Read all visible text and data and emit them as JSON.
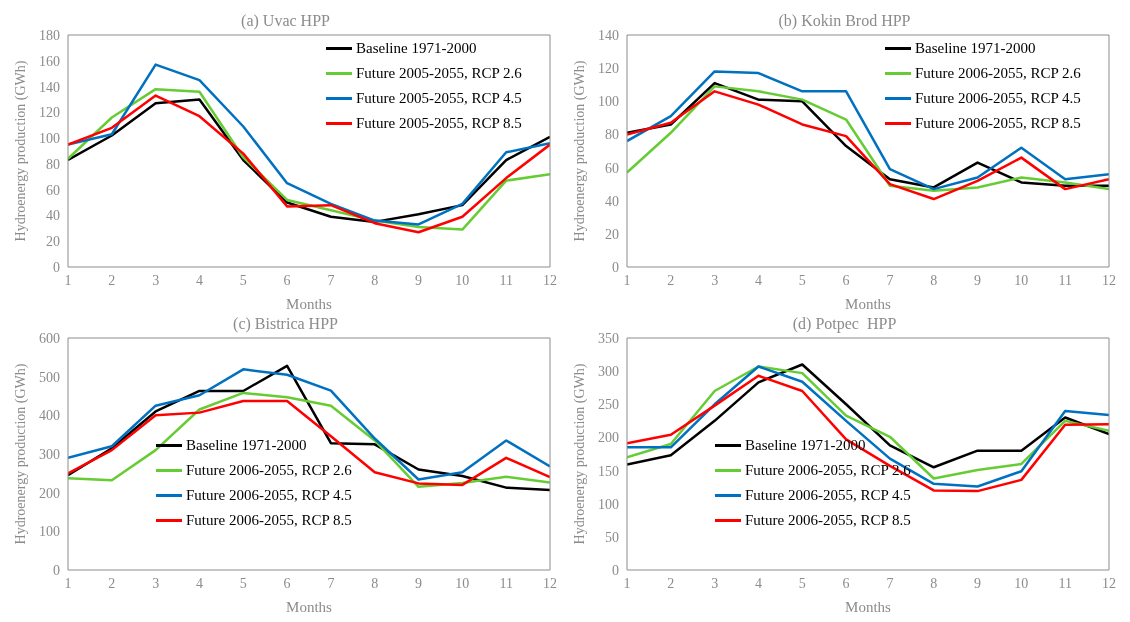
{
  "chart_data": [
    {
      "type": "line",
      "title": "(a) Uvac HPP",
      "xlabel": "Months",
      "ylabel": "Hydroenergy production (GWh)",
      "x": [
        1,
        2,
        3,
        4,
        5,
        6,
        7,
        8,
        9,
        10,
        11,
        12
      ],
      "xlim": [
        1,
        12
      ],
      "xticks": [
        1,
        2,
        3,
        4,
        5,
        6,
        7,
        8,
        9,
        10,
        11,
        12
      ],
      "ylim": [
        0,
        180
      ],
      "yticks": [
        0,
        20,
        40,
        60,
        80,
        100,
        120,
        140,
        160,
        180
      ],
      "grid": false,
      "legend": "top right",
      "marker": "none",
      "series": [
        {
          "name": "Baseline 1971-2000",
          "color": "#000000",
          "values": [
            83,
            102,
            127,
            130,
            83,
            50,
            39,
            35,
            41,
            48,
            83,
            101
          ]
        },
        {
          "name": "Future 2005-2055, RCP 2.6",
          "color": "#66cc33",
          "values": [
            84,
            116,
            138,
            136,
            85,
            52,
            44,
            36,
            31,
            29,
            67,
            72
          ]
        },
        {
          "name": "Future 2005-2055, RCP 4.5",
          "color": "#0070c0",
          "values": [
            95,
            103,
            157,
            145,
            109,
            65,
            49,
            36,
            33,
            49,
            89,
            96
          ]
        },
        {
          "name": "Future 2005-2055, RCP 8.5",
          "color": "#ff0000",
          "values": [
            95,
            108,
            133,
            117,
            88,
            47,
            48,
            34,
            27,
            39,
            69,
            95
          ]
        }
      ]
    },
    {
      "type": "line",
      "title": "(b) Kokin Brod HPP",
      "xlabel": "Months",
      "ylabel": "Hydroenergy production (GWh)",
      "x": [
        1,
        2,
        3,
        4,
        5,
        6,
        7,
        8,
        9,
        10,
        11,
        12
      ],
      "xlim": [
        1,
        12
      ],
      "xticks": [
        1,
        2,
        3,
        4,
        5,
        6,
        7,
        8,
        9,
        10,
        11,
        12
      ],
      "ylim": [
        0,
        140
      ],
      "yticks": [
        0,
        20,
        40,
        60,
        80,
        100,
        120,
        140
      ],
      "grid": false,
      "legend": "top right",
      "marker": "none",
      "series": [
        {
          "name": "Baseline 1971-2000",
          "color": "#000000",
          "values": [
            81,
            86,
            111,
            101,
            100,
            73,
            53,
            48,
            63,
            51,
            49,
            49
          ]
        },
        {
          "name": "Future 2006-2055, RCP 2.6",
          "color": "#66cc33",
          "values": [
            57,
            81,
            109,
            106,
            101,
            89,
            49,
            46,
            48,
            54,
            51,
            47
          ]
        },
        {
          "name": "Future 2006-2055, RCP 4.5",
          "color": "#0070c0",
          "values": [
            76,
            91,
            118,
            117,
            106,
            106,
            59,
            47,
            54,
            72,
            53,
            56
          ]
        },
        {
          "name": "Future 2006-2055, RCP 8.5",
          "color": "#ff0000",
          "values": [
            80,
            87,
            106,
            98,
            86,
            79,
            50,
            41,
            52,
            66,
            47,
            53
          ]
        }
      ]
    },
    {
      "type": "line",
      "title": "(c) Bistrica HPP",
      "xlabel": "Months",
      "ylabel": "Hydroenergy production (GWh)",
      "x": [
        1,
        2,
        3,
        4,
        5,
        6,
        7,
        8,
        9,
        10,
        11,
        12
      ],
      "xlim": [
        1,
        12
      ],
      "xticks": [
        1,
        2,
        3,
        4,
        5,
        6,
        7,
        8,
        9,
        10,
        11,
        12
      ],
      "ylim": [
        0,
        600
      ],
      "yticks": [
        0,
        100,
        200,
        300,
        400,
        500,
        600
      ],
      "grid": false,
      "legend": "bottom left",
      "marker": "none",
      "series": [
        {
          "name": "Baseline 1971-2000",
          "color": "#000000",
          "values": [
            245,
            315,
            410,
            463,
            463,
            528,
            328,
            325,
            260,
            243,
            213,
            207
          ]
        },
        {
          "name": "Future 2006-2055, RCP 2.6",
          "color": "#66cc33",
          "values": [
            237,
            232,
            310,
            415,
            458,
            447,
            425,
            335,
            215,
            225,
            241,
            226
          ]
        },
        {
          "name": "Future 2006-2055, RCP 4.5",
          "color": "#0070c0",
          "values": [
            290,
            320,
            425,
            452,
            519,
            505,
            464,
            340,
            234,
            253,
            335,
            268
          ]
        },
        {
          "name": "Future 2006-2055, RCP 8.5",
          "color": "#ff0000",
          "values": [
            250,
            310,
            400,
            407,
            437,
            437,
            346,
            253,
            224,
            220,
            290,
            240
          ]
        }
      ]
    },
    {
      "type": "line",
      "title": "(d) Potpec  HPP",
      "xlabel": "Months",
      "ylabel": "Hydroenergy production (GWh)",
      "x": [
        1,
        2,
        3,
        4,
        5,
        6,
        7,
        8,
        9,
        10,
        11,
        12
      ],
      "xlim": [
        1,
        12
      ],
      "xticks": [
        1,
        2,
        3,
        4,
        5,
        6,
        7,
        8,
        9,
        10,
        11,
        12
      ],
      "ylim": [
        0,
        350
      ],
      "yticks": [
        0,
        50,
        100,
        150,
        200,
        250,
        300,
        350
      ],
      "grid": false,
      "legend": "bottom left",
      "marker": "none",
      "series": [
        {
          "name": "Baseline 1971-2000",
          "color": "#000000",
          "values": [
            159,
            173,
            225,
            283,
            310,
            250,
            188,
            155,
            180,
            180,
            230,
            205
          ]
        },
        {
          "name": "Future 2006-2055, RCP 2.6",
          "color": "#66cc33",
          "values": [
            170,
            190,
            270,
            307,
            297,
            233,
            201,
            138,
            151,
            160,
            225,
            210
          ]
        },
        {
          "name": "Future 2006-2055, RCP 4.5",
          "color": "#0070c0",
          "values": [
            185,
            185,
            250,
            307,
            284,
            225,
            168,
            130,
            126,
            149,
            240,
            234
          ]
        },
        {
          "name": "Future 2006-2055, RCP 8.5",
          "color": "#ff0000",
          "values": [
            191,
            204,
            248,
            293,
            270,
            197,
            157,
            120,
            119,
            136,
            219,
            220
          ]
        }
      ]
    }
  ]
}
